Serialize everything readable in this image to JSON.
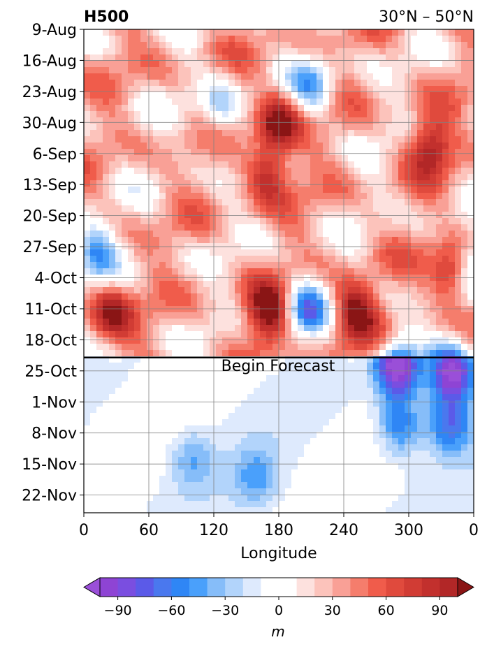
{
  "chart_data": {
    "type": "heatmap",
    "title_left": "H500",
    "title_right": "30°N – 50°N",
    "xlabel": "Longitude",
    "ylabel": "",
    "x_ticks": [
      "0",
      "60",
      "120",
      "180",
      "240",
      "300",
      "0"
    ],
    "x_tick_values": [
      0,
      60,
      120,
      180,
      240,
      300,
      360
    ],
    "xlim": [
      0,
      360
    ],
    "y_ticks": [
      "9-Aug",
      "16-Aug",
      "23-Aug",
      "30-Aug",
      "6-Sep",
      "13-Sep",
      "20-Sep",
      "27-Sep",
      "4-Oct",
      "11-Oct",
      "18-Oct",
      "25-Oct",
      "1-Nov",
      "8-Nov",
      "15-Nov",
      "22-Nov"
    ],
    "y_range": [
      "2023-08-09",
      "2023-11-26"
    ],
    "grid": true,
    "annotation": {
      "text": "Begin Forecast",
      "date": "2023-10-22"
    },
    "colorbar": {
      "label": "m",
      "ticks": [
        "−90",
        "−60",
        "−30",
        "0",
        "30",
        "60",
        "90"
      ],
      "tick_values": [
        -90,
        -60,
        -30,
        0,
        30,
        60,
        90
      ],
      "range": [
        -100,
        100
      ],
      "step": 10,
      "colors": [
        "#8e44d4",
        "#7a4ee0",
        "#5b5ae8",
        "#4a78ee",
        "#2f86f5",
        "#4aa0fb",
        "#86bdf9",
        "#b2d4fb",
        "#deeafd",
        "#ffffff",
        "#ffffff",
        "#fde1de",
        "#fcc3bb",
        "#f9a096",
        "#f57d6c",
        "#f05c4b",
        "#e04a3d",
        "#d13c34",
        "#c2302d",
        "#b22727"
      ],
      "over_color": "#8a1515",
      "under_color": "#9a4fd8"
    },
    "anomaly_features": [
      {
        "lon": 290,
        "date": "2023-10-24",
        "value": -110
      },
      {
        "lon": 292,
        "date": "2023-11-06",
        "value": -55
      },
      {
        "lon": 340,
        "date": "2023-10-25",
        "value": -110
      },
      {
        "lon": 338,
        "date": "2023-11-06",
        "value": -60
      },
      {
        "lon": 205,
        "date": "2023-10-11",
        "value": -80
      },
      {
        "lon": 210,
        "date": "2023-08-22",
        "value": -60
      },
      {
        "lon": 125,
        "date": "2023-08-27",
        "value": -50
      },
      {
        "lon": 10,
        "date": "2023-09-28",
        "value": -70
      },
      {
        "lon": 362,
        "date": "2023-10-01",
        "value": -60
      },
      {
        "lon": 180,
        "date": "2023-08-30",
        "value": 85
      },
      {
        "lon": 250,
        "date": "2023-10-12",
        "value": 90
      },
      {
        "lon": 170,
        "date": "2023-10-12",
        "value": 85
      },
      {
        "lon": 25,
        "date": "2023-10-12",
        "value": 70
      },
      {
        "lon": 170,
        "date": "2023-09-10",
        "value": 70
      },
      {
        "lon": 320,
        "date": "2023-09-04",
        "value": 70
      },
      {
        "lon": 340,
        "date": "2023-10-03",
        "value": 80
      },
      {
        "lon": 100,
        "date": "2023-11-14",
        "value": -30
      },
      {
        "lon": 160,
        "date": "2023-11-18",
        "value": -35
      }
    ]
  }
}
